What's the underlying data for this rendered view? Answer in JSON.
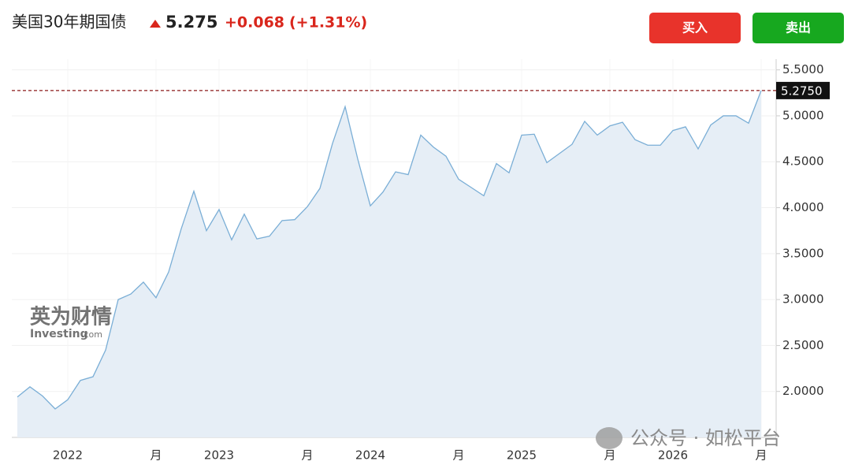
{
  "header": {
    "title": "美国30年期国债",
    "price": "5.275",
    "change": "+0.068",
    "change_pct": "(+1.31%)",
    "buy": "买入",
    "sell": "卖出"
  },
  "watermarks": {
    "brand_cn": "英为财情",
    "brand_en": "Investing",
    "brand_suffix": ".com",
    "wechat": "公众号 · 如松平台"
  },
  "chart_data": {
    "type": "area",
    "categories": [
      null,
      null,
      null,
      null,
      "2022",
      null,
      null,
      null,
      null,
      null,
      null,
      "月",
      null,
      null,
      null,
      null,
      "2023",
      null,
      null,
      null,
      null,
      null,
      null,
      "月",
      null,
      null,
      null,
      null,
      "2024",
      null,
      null,
      null,
      null,
      null,
      null,
      "月",
      null,
      null,
      null,
      null,
      "2025",
      null,
      null,
      null,
      null,
      null,
      null,
      "月",
      null,
      null,
      null,
      null,
      "2026",
      null,
      null,
      null,
      null,
      null,
      null,
      "月"
    ],
    "series": [
      {
        "name": "美国30年期国债",
        "color": "#7aaed6",
        "fill": "#e6eef6",
        "values": [
          1.94,
          2.05,
          1.95,
          1.81,
          1.91,
          2.12,
          2.16,
          2.45,
          3.0,
          3.06,
          3.19,
          3.02,
          3.3,
          3.77,
          4.18,
          3.75,
          3.98,
          3.65,
          3.93,
          3.66,
          3.69,
          3.86,
          3.87,
          4.01,
          4.21,
          4.7,
          5.1,
          4.53,
          4.02,
          4.17,
          4.39,
          4.36,
          4.79,
          4.66,
          4.56,
          4.31,
          4.22,
          4.13,
          4.48,
          4.38,
          4.79,
          4.8,
          4.49,
          4.59,
          4.69,
          4.94,
          4.79,
          4.89,
          4.93,
          4.74,
          4.68,
          4.68,
          4.84,
          4.88,
          4.64,
          4.9,
          5.0,
          5.0,
          4.92,
          5.275
        ]
      }
    ],
    "ylim": [
      1.5,
      5.6
    ],
    "yticks": [
      {
        "value": 2.0,
        "label": "2.0000"
      },
      {
        "value": 2.5,
        "label": "2.5000"
      },
      {
        "value": 3.0,
        "label": "3.0000"
      },
      {
        "value": 3.5,
        "label": "3.5000"
      },
      {
        "value": 4.0,
        "label": "4.0000"
      },
      {
        "value": 4.5,
        "label": "4.5000"
      },
      {
        "value": 5.0,
        "label": "5.0000"
      },
      {
        "value": 5.5,
        "label": "5.5000"
      }
    ],
    "current": {
      "value": 5.275,
      "label": "5.2750"
    },
    "grid": true
  }
}
